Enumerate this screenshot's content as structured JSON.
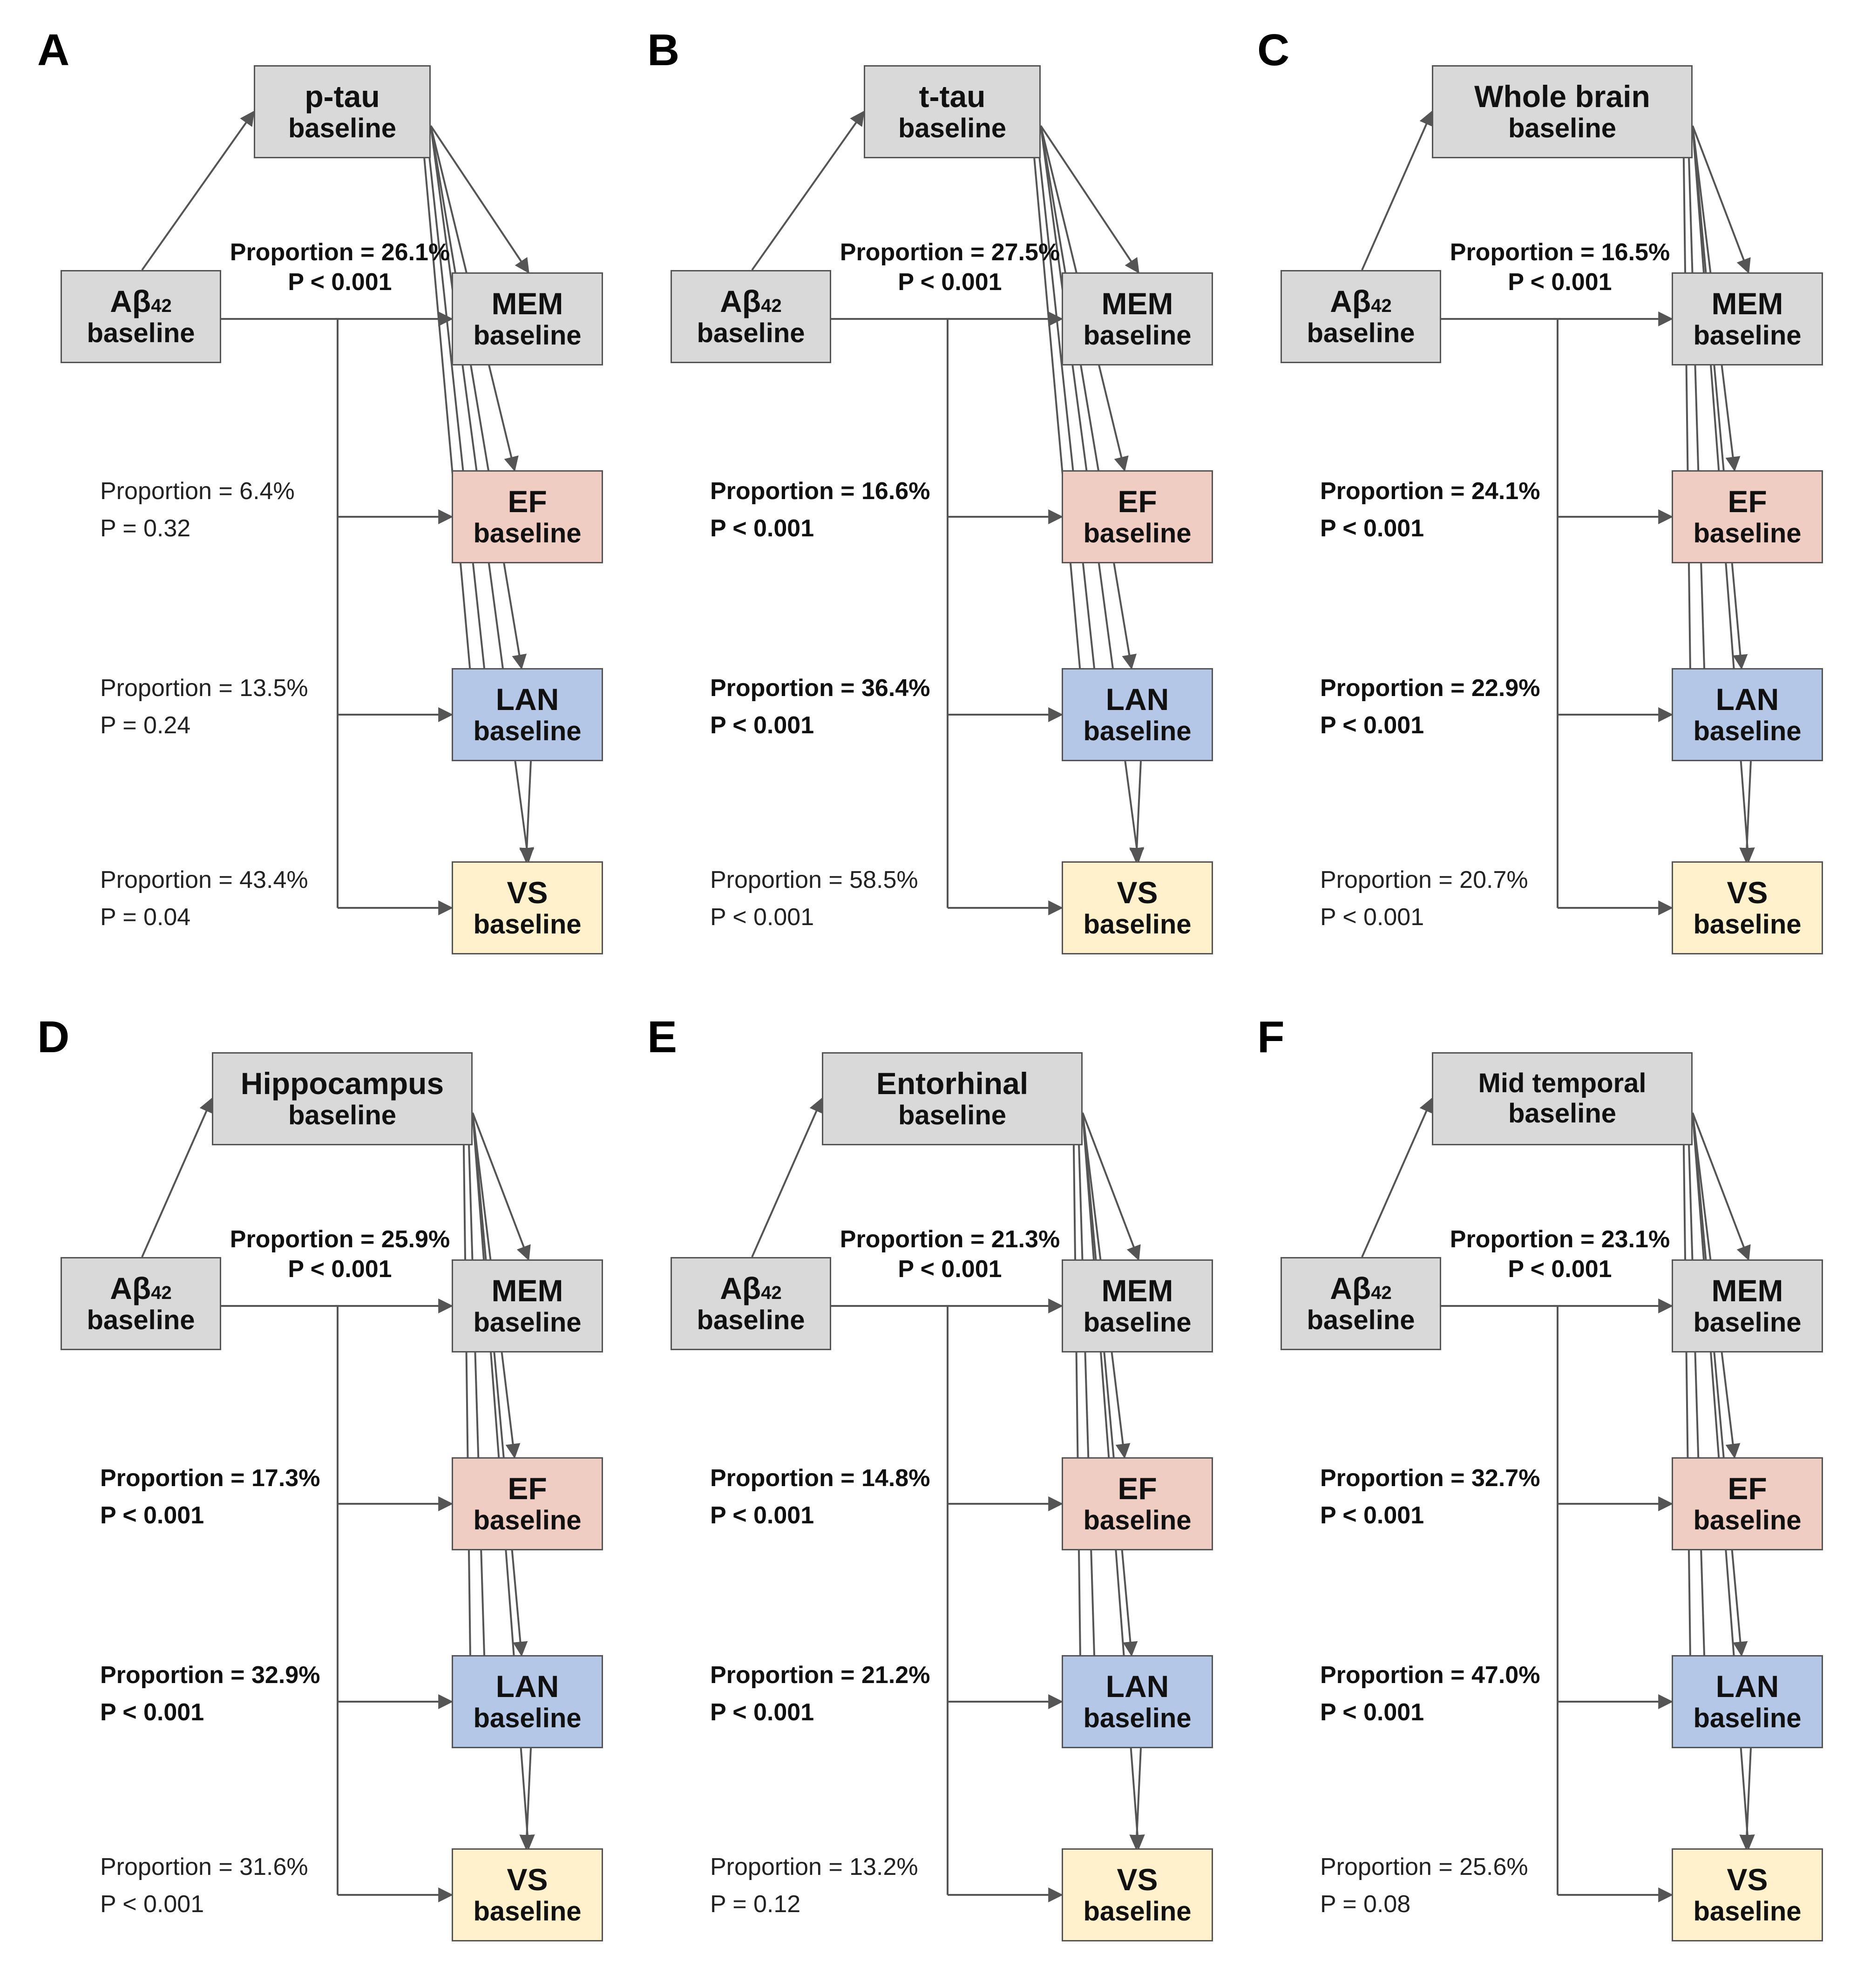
{
  "panels": [
    {
      "letter": "A",
      "mediator": {
        "line1": "p-tau",
        "line2": "baseline",
        "size": "normal"
      },
      "exposure": {
        "line1": "Aβ",
        "sub": "42",
        "line2": "baseline"
      },
      "outcomes": [
        {
          "name": "MEM",
          "suffix": "baseline",
          "proportion": "Proportion =  26.1%",
          "p": "P < 0.001",
          "bold": true
        },
        {
          "name": "EF",
          "suffix": "baseline",
          "proportion": "Proportion = 6.4%",
          "p": "P = 0.32",
          "bold": false
        },
        {
          "name": "LAN",
          "suffix": "baseline",
          "proportion": "Proportion = 13.5%",
          "p": "P = 0.24",
          "bold": false
        },
        {
          "name": "VS",
          "suffix": "baseline",
          "proportion": "Proportion = 43.4%",
          "p": "P = 0.04",
          "bold": false
        }
      ]
    },
    {
      "letter": "B",
      "mediator": {
        "line1": "t-tau",
        "line2": "baseline",
        "size": "normal"
      },
      "exposure": {
        "line1": "Aβ",
        "sub": "42",
        "line2": "baseline"
      },
      "outcomes": [
        {
          "name": "MEM",
          "suffix": "baseline",
          "proportion": "Proportion =  27.5%",
          "p": "P < 0.001",
          "bold": true
        },
        {
          "name": "EF",
          "suffix": "baseline",
          "proportion": "Proportion = 16.6%",
          "p": "P < 0.001",
          "bold": true
        },
        {
          "name": "LAN",
          "suffix": "baseline",
          "proportion": "Proportion = 36.4%",
          "p": "P < 0.001",
          "bold": true
        },
        {
          "name": "VS",
          "suffix": "baseline",
          "proportion": "Proportion = 58.5%",
          "p": "P < 0.001",
          "bold": false
        }
      ]
    },
    {
      "letter": "C",
      "mediator": {
        "line1": "Whole brain",
        "line2": "baseline",
        "size": "wide"
      },
      "exposure": {
        "line1": "Aβ",
        "sub": "42",
        "line2": "baseline"
      },
      "outcomes": [
        {
          "name": "MEM",
          "suffix": "baseline",
          "proportion": "Proportion =  16.5%",
          "p": "P < 0.001",
          "bold": true
        },
        {
          "name": "EF",
          "suffix": "baseline",
          "proportion": "Proportion = 24.1%",
          "p": "P < 0.001",
          "bold": true
        },
        {
          "name": "LAN",
          "suffix": "baseline",
          "proportion": "Proportion = 22.9%",
          "p": "P < 0.001",
          "bold": true
        },
        {
          "name": "VS",
          "suffix": "baseline",
          "proportion": "Proportion = 20.7%",
          "p": "P < 0.001",
          "bold": false
        }
      ]
    },
    {
      "letter": "D",
      "mediator": {
        "line1": "Hippocampus",
        "line2": "baseline",
        "size": "wide"
      },
      "exposure": {
        "line1": "Aβ",
        "sub": "42",
        "line2": "baseline"
      },
      "outcomes": [
        {
          "name": "MEM",
          "suffix": "baseline",
          "proportion": "Proportion =  25.9%",
          "p": "P < 0.001",
          "bold": true
        },
        {
          "name": "EF",
          "suffix": "baseline",
          "proportion": "Proportion = 17.3%",
          "p": "P < 0.001",
          "bold": true
        },
        {
          "name": "LAN",
          "suffix": "baseline",
          "proportion": "Proportion = 32.9%",
          "p": "P < 0.001",
          "bold": true
        },
        {
          "name": "VS",
          "suffix": "baseline",
          "proportion": "Proportion = 31.6%",
          "p": "P < 0.001",
          "bold": false
        }
      ]
    },
    {
      "letter": "E",
      "mediator": {
        "line1": "Entorhinal",
        "line2": "baseline",
        "size": "wide"
      },
      "exposure": {
        "line1": "Aβ",
        "sub": "42",
        "line2": "baseline"
      },
      "outcomes": [
        {
          "name": "MEM",
          "suffix": "baseline",
          "proportion": "Proportion =  21.3%",
          "p": "P < 0.001",
          "bold": true
        },
        {
          "name": "EF",
          "suffix": "baseline",
          "proportion": "Proportion = 14.8%",
          "p": "P < 0.001",
          "bold": true
        },
        {
          "name": "LAN",
          "suffix": "baseline",
          "proportion": "Proportion = 21.2%",
          "p": "P < 0.001",
          "bold": true
        },
        {
          "name": "VS",
          "suffix": "baseline",
          "proportion": "Proportion = 13.2%",
          "p": "P = 0.12",
          "bold": false
        }
      ]
    },
    {
      "letter": "F",
      "mediator": {
        "line1": "Mid temporal",
        "line2": "baseline",
        "size": "wide-small"
      },
      "exposure": {
        "line1": "Aβ",
        "sub": "42",
        "line2": "baseline"
      },
      "outcomes": [
        {
          "name": "MEM",
          "suffix": "baseline",
          "proportion": "Proportion =  23.1%",
          "p": "P < 0.001",
          "bold": true
        },
        {
          "name": "EF",
          "suffix": "baseline",
          "proportion": "Proportion = 32.7%",
          "p": "P < 0.001",
          "bold": true
        },
        {
          "name": "LAN",
          "suffix": "baseline",
          "proportion": "Proportion = 47.0%",
          "p": "P < 0.001",
          "bold": true
        },
        {
          "name": "VS",
          "suffix": "baseline",
          "proportion": "Proportion = 25.6%",
          "p": "P = 0.08",
          "bold": false
        }
      ]
    }
  ],
  "colors": {
    "exposure_box": "#d9d9d9",
    "mediator_box": "#d9d9d9",
    "MEM": "#d9d9d9",
    "EF": "#efcdc2",
    "LAN": "#b4c7e7",
    "VS": "#fff1cc",
    "arrow": "#555555"
  }
}
